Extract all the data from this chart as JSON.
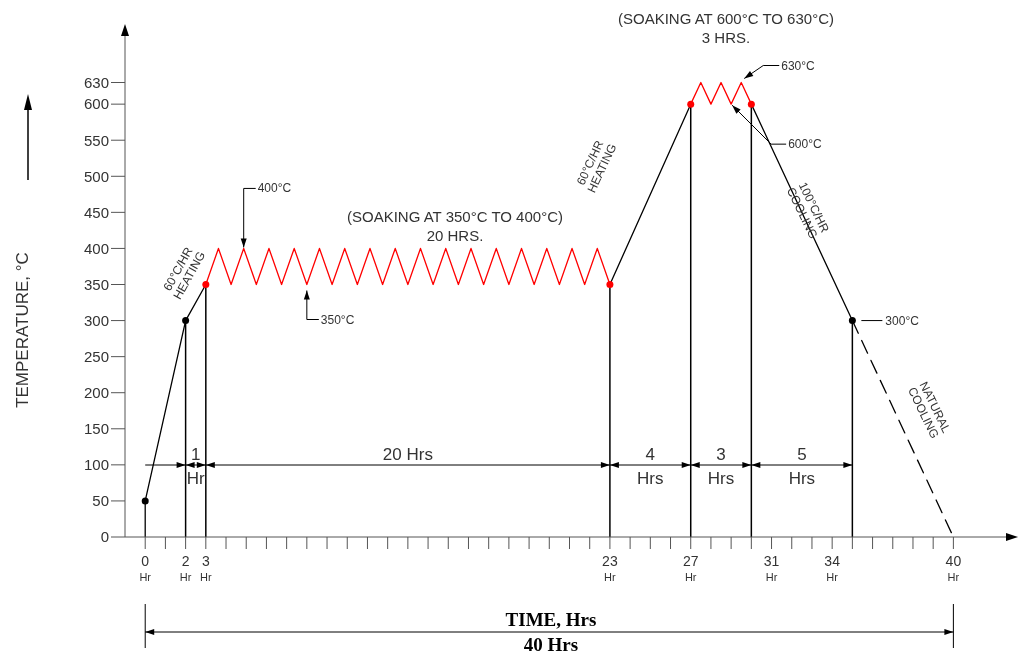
{
  "chart_data": {
    "type": "line",
    "xlabel": "TIME, Hrs",
    "ylabel": "TEMPERATURE, °C",
    "marker": "none",
    "line_style": "solid",
    "xlim": [
      -1,
      43
    ],
    "ylim": [
      0,
      700
    ],
    "xticks": [
      {
        "value": 0,
        "label": "0\nHr"
      },
      {
        "value": 1,
        "label": null
      },
      {
        "value": 2,
        "label": "2\nHr"
      },
      {
        "value": 3,
        "label": "3\nHr"
      },
      {
        "value": 4,
        "label": null
      },
      {
        "value": 5,
        "label": null
      },
      {
        "value": 6,
        "label": null
      },
      {
        "value": 7,
        "label": null
      },
      {
        "value": 8,
        "label": null
      },
      {
        "value": 9,
        "label": null
      },
      {
        "value": 10,
        "label": null
      },
      {
        "value": 11,
        "label": null
      },
      {
        "value": 12,
        "label": null
      },
      {
        "value": 13,
        "label": null
      },
      {
        "value": 14,
        "label": null
      },
      {
        "value": 15,
        "label": null
      },
      {
        "value": 16,
        "label": null
      },
      {
        "value": 17,
        "label": null
      },
      {
        "value": 18,
        "label": null
      },
      {
        "value": 19,
        "label": null
      },
      {
        "value": 20,
        "label": null
      },
      {
        "value": 21,
        "label": null
      },
      {
        "value": 22,
        "label": null
      },
      {
        "value": 23,
        "label": "23\nHr"
      },
      {
        "value": 24,
        "label": null
      },
      {
        "value": 25,
        "label": null
      },
      {
        "value": 26,
        "label": null
      },
      {
        "value": 27,
        "label": "27\nHr"
      },
      {
        "value": 28,
        "label": null
      },
      {
        "value": 29,
        "label": null
      },
      {
        "value": 30,
        "label": null
      },
      {
        "value": 31,
        "label": "31\nHr"
      },
      {
        "value": 32,
        "label": null
      },
      {
        "value": 33,
        "label": null
      },
      {
        "value": 34,
        "label": "34\nHr"
      },
      {
        "value": 35,
        "label": null
      },
      {
        "value": 36,
        "label": null
      },
      {
        "value": 37,
        "label": null
      },
      {
        "value": 38,
        "label": null
      },
      {
        "value": 39,
        "label": null
      },
      {
        "value": 40,
        "label": "40\nHr"
      }
    ],
    "yticks": [
      0,
      50,
      100,
      150,
      200,
      250,
      300,
      350,
      400,
      450,
      500,
      550,
      600,
      630
    ],
    "series": [
      {
        "type": "line",
        "color": "#000000",
        "x": [
          0,
          2,
          3
        ],
        "values": [
          50,
          300,
          350
        ]
      },
      {
        "type": "line",
        "color": "#ff0000",
        "x": [
          3,
          3.625,
          4.25,
          4.875,
          5.5,
          6.125,
          6.75,
          7.375,
          8,
          8.625,
          9.25,
          9.875,
          10.5,
          11.125,
          11.75,
          12.375,
          13,
          13.625,
          14.25,
          14.875,
          15.5,
          16.125,
          16.75,
          17.375,
          18,
          18.625,
          19.25,
          19.875,
          20.5,
          21.125,
          21.75,
          22.375,
          23
        ],
        "values": [
          350,
          400,
          350,
          400,
          350,
          400,
          350,
          400,
          350,
          400,
          350,
          400,
          350,
          400,
          350,
          400,
          350,
          400,
          350,
          400,
          350,
          400,
          350,
          400,
          350,
          400,
          350,
          400,
          350,
          400,
          350,
          400,
          350
        ]
      },
      {
        "type": "line",
        "color": "#000000",
        "x": [
          23,
          27
        ],
        "values": [
          350,
          600
        ]
      },
      {
        "type": "line",
        "color": "#ff0000",
        "x": [
          27,
          27.5,
          28,
          28.5,
          29,
          29.5,
          30
        ],
        "values": [
          600,
          630,
          600,
          630,
          600,
          630,
          600
        ]
      },
      {
        "type": "line",
        "color": "#000000",
        "x": [
          30,
          35
        ],
        "values": [
          600,
          300
        ]
      },
      {
        "type": "line",
        "color": "#000000",
        "x": [
          35,
          40
        ],
        "values": [
          300,
          0
        ],
        "line_style": "dashed"
      },
      {
        "type": "scatter",
        "color": "#000000",
        "marker": "circle",
        "x": [
          0,
          2,
          35
        ],
        "values": [
          50,
          300,
          300
        ]
      },
      {
        "type": "scatter",
        "color": "#ff0000",
        "marker": "circle",
        "x": [
          3,
          23,
          27,
          30
        ],
        "values": [
          350,
          350,
          600,
          600
        ]
      },
      {
        "type": "line",
        "color": "#000000",
        "x": [
          0,
          0
        ],
        "values": [
          0,
          50
        ]
      }
    ],
    "ref_lines": [
      {
        "axis": "x",
        "value": 2,
        "color": "#000000"
      },
      {
        "axis": "x",
        "value": 3,
        "color": "#000000"
      },
      {
        "axis": "x",
        "value": 23,
        "color": "#000000"
      },
      {
        "axis": "x",
        "value": 27,
        "color": "#000000"
      },
      {
        "axis": "x",
        "value": 30,
        "color": "#000000"
      },
      {
        "axis": "x",
        "value": 35,
        "color": "#000000"
      }
    ],
    "annotations": [
      "(SOAKING AT 350°C TO 400°C)\n20 HRS.",
      "(SOAKING AT 600°C TO 630°C)\n3 HRS.",
      {
        "text": "400°C",
        "x": 4.875,
        "y": 400
      },
      {
        "text": "350°C",
        "x": 8,
        "y": 350
      },
      {
        "text": "630°C",
        "x": 29.5,
        "y": 630
      },
      {
        "text": "600°C",
        "x": 29,
        "y": 600
      },
      {
        "text": "300°C",
        "x": 35,
        "y": 300
      },
      "60°C/HR\nHEATING",
      "60°C/HR\nHEATING",
      "100°C/HR\nCOOLING",
      "NATURAL\nCOOLING",
      "1\nHr",
      "20 Hrs",
      "4\nHrs",
      "3\nHrs",
      "5\nHrs",
      "40 Hrs"
    ]
  }
}
